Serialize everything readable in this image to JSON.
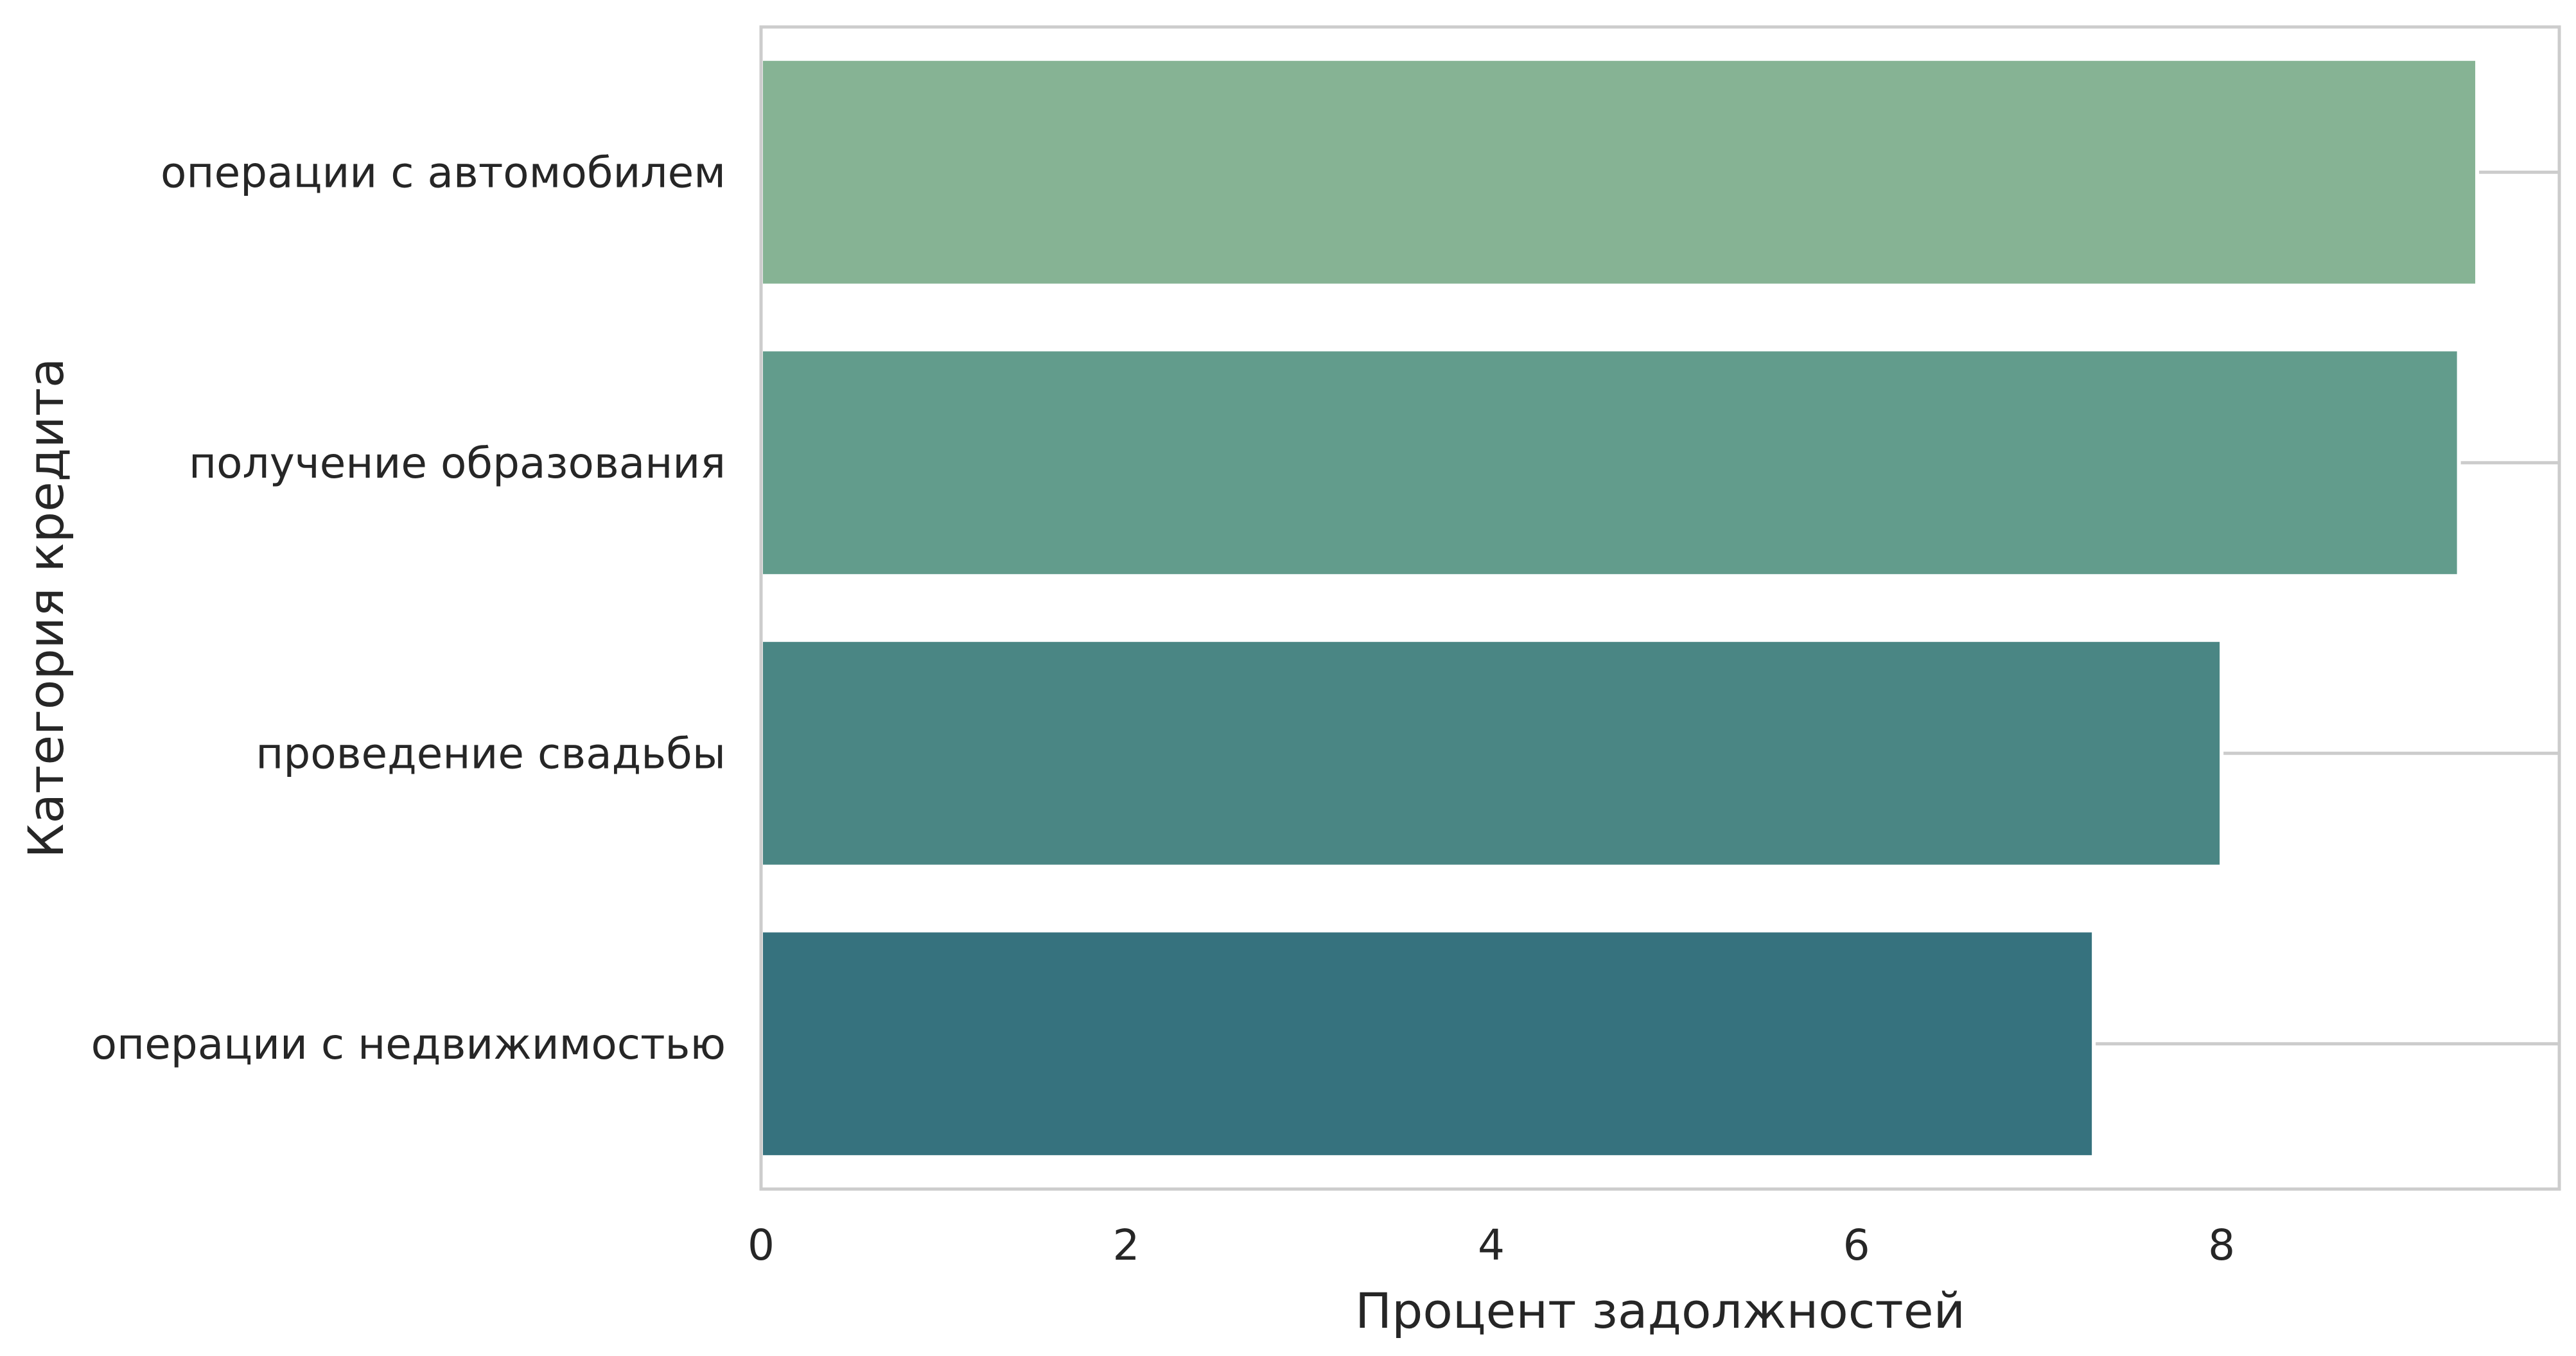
{
  "chart_data": {
    "type": "bar",
    "orientation": "horizontal",
    "categories": [
      "операции с автомобилем",
      "получение образования",
      "проведение свадьбы",
      "операции с недвижимостью"
    ],
    "values": [
      9.4,
      9.3,
      8.0,
      7.3
    ],
    "colors": [
      "#86b394",
      "#629c8c",
      "#4a8684",
      "#36727e"
    ],
    "xlabel": "Процент задолжностей",
    "ylabel": "Категория кредита",
    "xticks": [
      "0",
      "2",
      "4",
      "6",
      "8"
    ],
    "xlim": [
      0,
      9.85
    ],
    "grid": "vertical-category-lines",
    "legend": "none"
  }
}
